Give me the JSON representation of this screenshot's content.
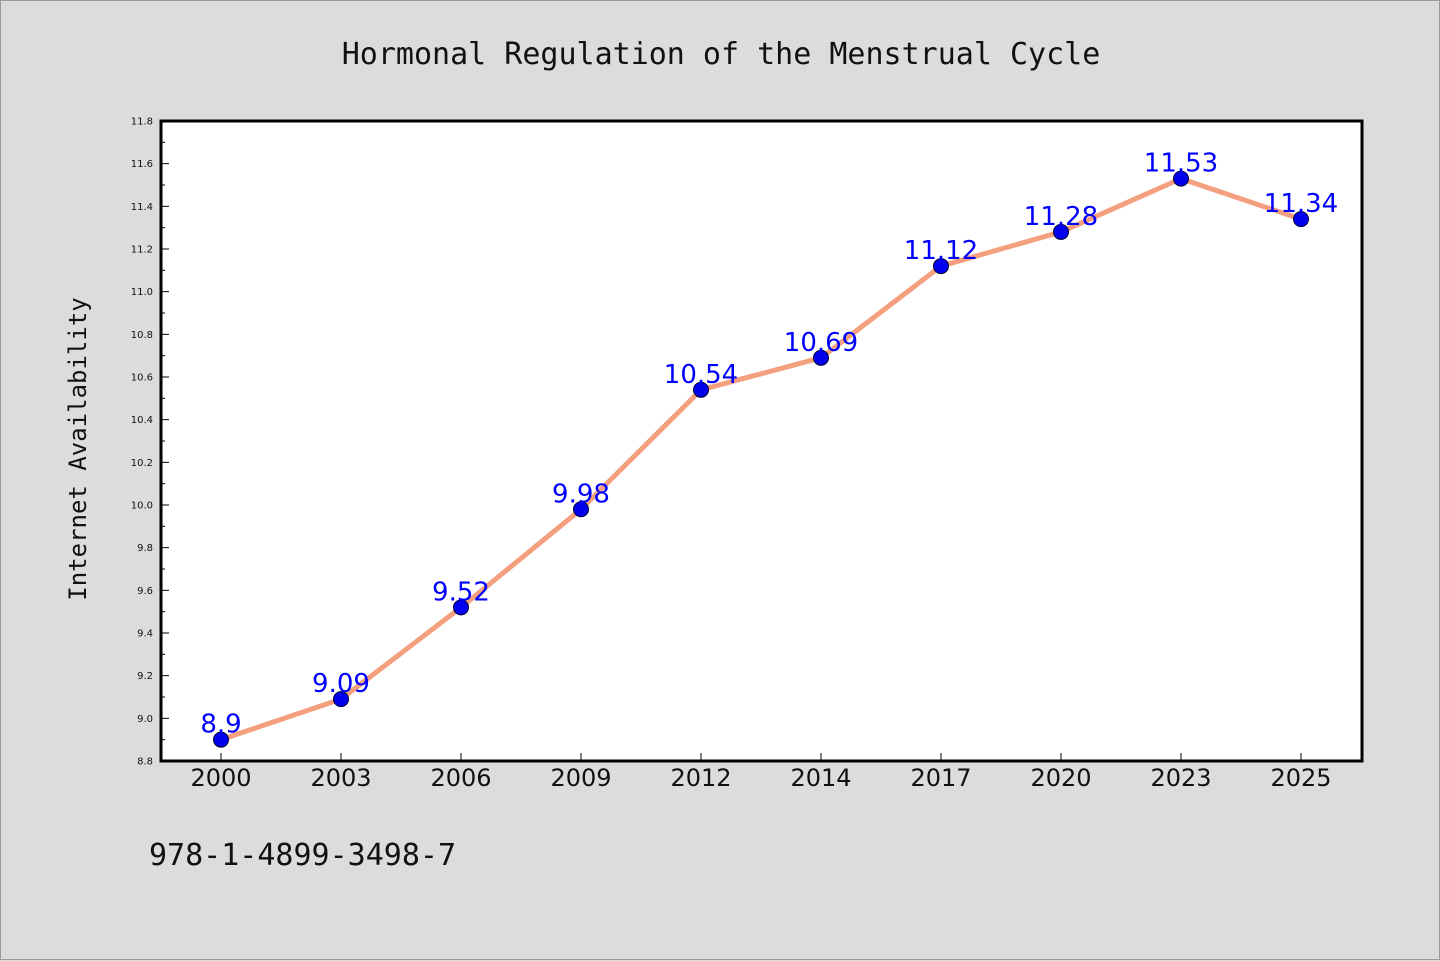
{
  "chart_data": {
    "type": "line",
    "title": "Hormonal Regulation of the Menstrual Cycle",
    "xlabel": "",
    "ylabel": "Internet Availability",
    "categories": [
      "2000",
      "2003",
      "2006",
      "2009",
      "2012",
      "2014",
      "2017",
      "2020",
      "2023",
      "2025"
    ],
    "series": [
      {
        "values": [
          8.9,
          9.09,
          9.52,
          9.98,
          10.54,
          10.69,
          11.12,
          11.28,
          11.53,
          11.34
        ],
        "labels": [
          "8.9",
          "9.09",
          "9.52",
          "9.98",
          "10.54",
          "10.69",
          "11.12",
          "11.28",
          "11.53",
          "11.34"
        ],
        "line_color": "#f4a07f",
        "marker_color": "#0000ee",
        "label_color": "#0000ff"
      }
    ],
    "ylim": [
      8.8,
      11.8
    ],
    "yticks": [
      "8.8",
      "9.0",
      "9.2",
      "9.4",
      "9.6",
      "9.8",
      "10.0",
      "10.2",
      "10.4",
      "10.6",
      "10.8",
      "11.0",
      "11.2",
      "11.4",
      "11.6",
      "11.8"
    ],
    "grid": false,
    "legend": "none"
  },
  "footer_text": "978-1-4899-3498-7",
  "colors": {
    "background": "#dcdcdc",
    "plot_background": "#ffffff",
    "axis": "#000000"
  }
}
